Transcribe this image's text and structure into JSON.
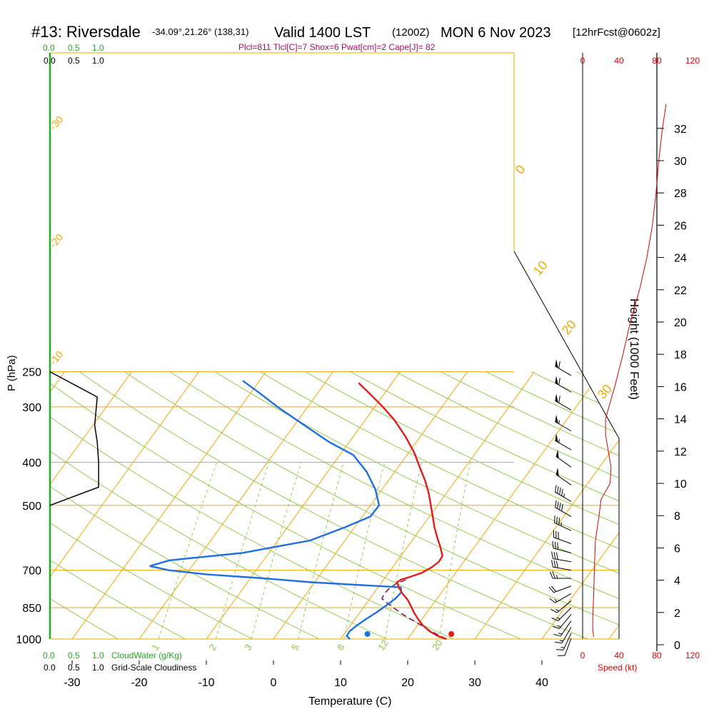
{
  "header": {
    "station": "#13: Riversdale",
    "coords": "-34.09°,21.26° (138,31)",
    "valid": "Valid 1400 LST",
    "utc": "(1200Z)",
    "date": "MON 6 Nov 2023",
    "fcst": "[12hrFcst@0602z]",
    "indices": "Plcl=811 Tlcl[C]=7 Shox=6 Pwat[cm]=2 Cape[J]= 82"
  },
  "colors": {
    "isotherm": "#f2a900",
    "dry_adiabat": "#8cc63e",
    "temperature": "#e21b1b",
    "dewpoint": "#1f6fe0",
    "parcel": "#7a1a5a",
    "green_text": "#22aa22",
    "speed": "#e00000",
    "indices_text": "#a0106a"
  },
  "chart_data": {
    "type": "skew-t log-p sounding",
    "xlabel": "Temperature (C)",
    "ylabel": "P (hPa)",
    "right_axis_label": "Height (1000 Feet)",
    "x_ticks": [
      -30,
      -20,
      -10,
      0,
      10,
      20,
      30,
      40
    ],
    "pressure_levels": [
      250,
      300,
      400,
      500,
      700,
      850,
      1000
    ],
    "height_ticks": [
      0,
      2,
      4,
      6,
      8,
      10,
      12,
      14,
      16,
      18,
      20,
      22,
      24,
      26,
      28,
      30,
      32
    ],
    "isotherm_labels": [
      "-30",
      "-20",
      "-10",
      "0",
      "10",
      "20",
      "30"
    ],
    "mixing_ratio_labels": [
      "1",
      "2",
      "3",
      "5",
      "8",
      "12",
      "20"
    ],
    "cloud_axis": {
      "top_green_ticks": [
        "0.0",
        "0.5",
        "1.0"
      ],
      "top_black_ticks": [
        "0.0",
        "0.5",
        "1.0"
      ],
      "bottom_green_ticks": [
        "0.0",
        "0.5",
        "1.0"
      ],
      "bottom_black_ticks": [
        "0.0",
        "0.5",
        "1.0"
      ],
      "cloudwater_label": "CloudWater (g/Kg)",
      "cloudiness_label": "Grid-Scale Cloudiness"
    },
    "speed_axis": {
      "ticks_top": [
        "0",
        "40",
        "80",
        "120"
      ],
      "ticks_bottom": [
        "0",
        "40",
        "80",
        "120"
      ],
      "label": "Speed (kt)"
    },
    "temperature": [
      {
        "p": 1000,
        "t": 25.8
      },
      {
        "p": 985,
        "t": 24.2
      },
      {
        "p": 960,
        "t": 22.4
      },
      {
        "p": 930,
        "t": 20.7
      },
      {
        "p": 900,
        "t": 19.3
      },
      {
        "p": 870,
        "t": 18.0
      },
      {
        "p": 840,
        "t": 16.8
      },
      {
        "p": 815,
        "t": 15.7
      },
      {
        "p": 790,
        "t": 14.3
      },
      {
        "p": 765,
        "t": 13.1
      },
      {
        "p": 745,
        "t": 12.3
      },
      {
        "p": 735,
        "t": 12.6
      },
      {
        "p": 725,
        "t": 13.6
      },
      {
        "p": 710,
        "t": 14.9
      },
      {
        "p": 690,
        "t": 15.8
      },
      {
        "p": 670,
        "t": 16.3
      },
      {
        "p": 650,
        "t": 16.2
      },
      {
        "p": 620,
        "t": 14.9
      },
      {
        "p": 590,
        "t": 13.4
      },
      {
        "p": 560,
        "t": 11.9
      },
      {
        "p": 530,
        "t": 10.5
      },
      {
        "p": 500,
        "t": 9.0
      },
      {
        "p": 470,
        "t": 7.4
      },
      {
        "p": 440,
        "t": 5.5
      },
      {
        "p": 410,
        "t": 3.2
      },
      {
        "p": 380,
        "t": 0.8
      },
      {
        "p": 350,
        "t": -2.2
      },
      {
        "p": 320,
        "t": -5.8
      },
      {
        "p": 300,
        "t": -8.8
      },
      {
        "p": 280,
        "t": -12.2
      },
      {
        "p": 265,
        "t": -15.0
      }
    ],
    "dewpoint": [
      {
        "p": 1000,
        "t": 11.4
      },
      {
        "p": 985,
        "t": 10.6
      },
      {
        "p": 960,
        "t": 10.5
      },
      {
        "p": 930,
        "t": 11.0
      },
      {
        "p": 900,
        "t": 11.7
      },
      {
        "p": 870,
        "t": 12.5
      },
      {
        "p": 840,
        "t": 13.2
      },
      {
        "p": 810,
        "t": 13.8
      },
      {
        "p": 785,
        "t": 14.0
      },
      {
        "p": 765,
        "t": 13.4
      },
      {
        "p": 745,
        "t": -0.5
      },
      {
        "p": 730,
        "t": -8.0
      },
      {
        "p": 715,
        "t": -17.0
      },
      {
        "p": 700,
        "t": -23.0
      },
      {
        "p": 685,
        "t": -26.3
      },
      {
        "p": 665,
        "t": -24.0
      },
      {
        "p": 640,
        "t": -14.0
      },
      {
        "p": 600,
        "t": -5.2
      },
      {
        "p": 560,
        "t": -1.4
      },
      {
        "p": 530,
        "t": 1.2
      },
      {
        "p": 500,
        "t": 1.3
      },
      {
        "p": 460,
        "t": -1.0
      },
      {
        "p": 420,
        "t": -4.2
      },
      {
        "p": 385,
        "t": -8.0
      },
      {
        "p": 360,
        "t": -13.0
      },
      {
        "p": 330,
        "t": -18.5
      },
      {
        "p": 300,
        "t": -24.5
      },
      {
        "p": 280,
        "t": -28.5
      },
      {
        "p": 262,
        "t": -32.5
      }
    ],
    "parcel": [
      {
        "p": 1000,
        "t": 25.8
      },
      {
        "p": 960,
        "t": 22.6
      },
      {
        "p": 920,
        "t": 19.7
      },
      {
        "p": 880,
        "t": 16.6
      },
      {
        "p": 850,
        "t": 14.5
      },
      {
        "p": 830,
        "t": 13.1
      },
      {
        "p": 811,
        "t": 11.8
      },
      {
        "p": 790,
        "t": 11.6
      },
      {
        "p": 770,
        "t": 11.8
      },
      {
        "p": 750,
        "t": 12.3
      },
      {
        "p": 735,
        "t": 13.4
      }
    ],
    "surface_markers": {
      "temperature": 26.5,
      "dewpoint": 14.0
    },
    "cloudiness_profile": [
      {
        "p": 250,
        "v": 0.0
      },
      {
        "p": 285,
        "v": 0.72
      },
      {
        "p": 330,
        "v": 0.68
      },
      {
        "p": 360,
        "v": 0.72
      },
      {
        "p": 400,
        "v": 0.74
      },
      {
        "p": 440,
        "v": 0.74
      },
      {
        "p": 455,
        "v": 0.74
      },
      {
        "p": 500,
        "v": 0.0
      }
    ],
    "wind_speed_profile": [
      {
        "h": 0.5,
        "s": 12
      },
      {
        "h": 1.0,
        "s": 11
      },
      {
        "h": 1.5,
        "s": 11
      },
      {
        "h": 3,
        "s": 12
      },
      {
        "h": 5,
        "s": 13
      },
      {
        "h": 6.5,
        "s": 14
      },
      {
        "h": 8,
        "s": 18
      },
      {
        "h": 9,
        "s": 20
      },
      {
        "h": 10,
        "s": 30
      },
      {
        "h": 11,
        "s": 31
      },
      {
        "h": 12,
        "s": 28
      },
      {
        "h": 13,
        "s": 25
      },
      {
        "h": 14,
        "s": 25
      },
      {
        "h": 16,
        "s": 35
      },
      {
        "h": 18,
        "s": 44
      },
      {
        "h": 20,
        "s": 52
      },
      {
        "h": 22,
        "s": 62
      },
      {
        "h": 24,
        "s": 70
      },
      {
        "h": 26,
        "s": 76
      },
      {
        "h": 28,
        "s": 80
      },
      {
        "h": 30,
        "s": 83
      },
      {
        "h": 32,
        "s": 87
      },
      {
        "h": 33.5,
        "s": 91
      }
    ],
    "wind_barbs": [
      {
        "p": 255,
        "dir": 300,
        "kt": 60
      },
      {
        "p": 278,
        "dir": 300,
        "kt": 60
      },
      {
        "p": 305,
        "dir": 300,
        "kt": 60
      },
      {
        "p": 340,
        "dir": 300,
        "kt": 55
      },
      {
        "p": 375,
        "dir": 300,
        "kt": 55
      },
      {
        "p": 410,
        "dir": 305,
        "kt": 50
      },
      {
        "p": 450,
        "dir": 305,
        "kt": 50
      },
      {
        "p": 490,
        "dir": 300,
        "kt": 45
      },
      {
        "p": 530,
        "dir": 300,
        "kt": 40
      },
      {
        "p": 570,
        "dir": 295,
        "kt": 35
      },
      {
        "p": 610,
        "dir": 290,
        "kt": 30
      },
      {
        "p": 640,
        "dir": 285,
        "kt": 30
      },
      {
        "p": 670,
        "dir": 280,
        "kt": 30
      },
      {
        "p": 700,
        "dir": 280,
        "kt": 30
      },
      {
        "p": 730,
        "dir": 270,
        "kt": 25
      },
      {
        "p": 760,
        "dir": 250,
        "kt": 20
      },
      {
        "p": 790,
        "dir": 240,
        "kt": 15
      },
      {
        "p": 820,
        "dir": 230,
        "kt": 15
      },
      {
        "p": 850,
        "dir": 225,
        "kt": 15
      },
      {
        "p": 880,
        "dir": 220,
        "kt": 15
      },
      {
        "p": 910,
        "dir": 215,
        "kt": 15
      },
      {
        "p": 940,
        "dir": 210,
        "kt": 15
      },
      {
        "p": 970,
        "dir": 205,
        "kt": 15
      },
      {
        "p": 995,
        "dir": 200,
        "kt": 10
      }
    ]
  }
}
